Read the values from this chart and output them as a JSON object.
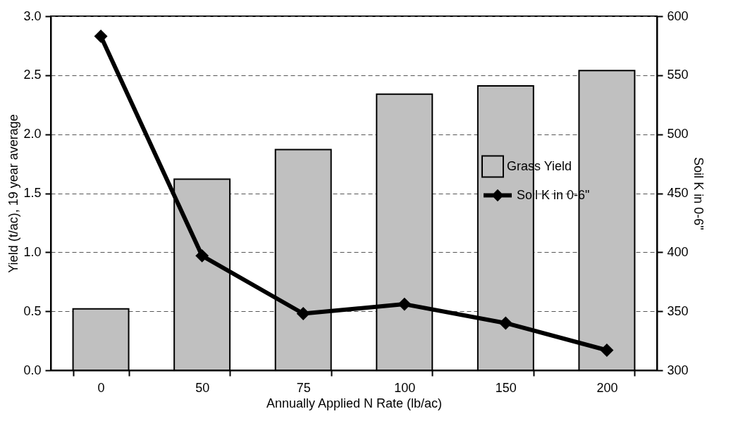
{
  "chart_data": {
    "type": "bar",
    "xlabel": "Annually Applied N Rate (lb/ac)",
    "ylabel": "Yield (t/ac), 19 year average",
    "y2label": "Soil K in 0-6\"",
    "categories": [
      "0",
      "50",
      "75",
      "100",
      "150",
      "200"
    ],
    "series": [
      {
        "name": "Grass Yield",
        "color": "#c0c0c0",
        "values": [
          0.52,
          1.62,
          1.87,
          2.34,
          2.41,
          2.54
        ]
      },
      {
        "name": "Soil K in 0-6\"",
        "type": "line",
        "axis": "y2",
        "color": "#000000",
        "marker": "diamond",
        "values": [
          583,
          397,
          348,
          356,
          340,
          317
        ]
      }
    ],
    "ylim": [
      0,
      3
    ],
    "yticks": [
      {
        "value": 0,
        "label": "0.0"
      },
      0.5,
      {
        "value": 1,
        "label": "1.0"
      },
      1.5,
      {
        "value": 2,
        "label": "2.0"
      },
      2.5,
      {
        "value": 3,
        "label": "3.0"
      }
    ],
    "y2lim": [
      300,
      600
    ],
    "y2ticks": [
      300,
      350,
      400,
      450,
      500,
      550,
      600
    ],
    "grid": "y",
    "legend": "right"
  }
}
